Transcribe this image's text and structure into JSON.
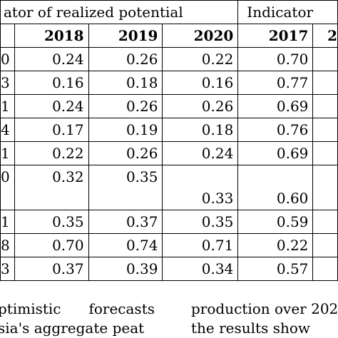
{
  "table": {
    "group_header_left": "ator of realized potential",
    "group_header_right": "Indicator",
    "years": [
      "2018",
      "2019",
      "2020",
      "2017",
      "2"
    ],
    "rows": [
      {
        "c0": "0",
        "v2018": "0.24",
        "v2019": "0.26",
        "v2020": "0.22",
        "v2017": "0.70"
      },
      {
        "c0": "3",
        "v2018": "0.16",
        "v2019": "0.18",
        "v2020": "0.16",
        "v2017": "0.77"
      },
      {
        "c0": "1",
        "v2018": "0.24",
        "v2019": "0.26",
        "v2020": "0.26",
        "v2017": "0.69"
      },
      {
        "c0": "4",
        "v2018": "0.17",
        "v2019": "0.19",
        "v2020": "0.18",
        "v2017": "0.76"
      },
      {
        "c0": "1",
        "v2018": "0.22",
        "v2019": "0.26",
        "v2020": "0.24",
        "v2017": "0.69"
      },
      {
        "c0": "0",
        "v2018": "0.32",
        "v2019": "0.35",
        "v2020": "0.33",
        "v2017": "0.60"
      },
      {
        "c0": "1",
        "v2018": "0.35",
        "v2019": "0.37",
        "v2020": "0.35",
        "v2017": "0.59"
      },
      {
        "c0": "8",
        "v2018": "0.70",
        "v2019": "0.74",
        "v2020": "0.71",
        "v2017": "0.22"
      },
      {
        "c0": "3",
        "v2018": "0.37",
        "v2019": "0.39",
        "v2020": "0.34",
        "v2017": "0.57"
      }
    ]
  },
  "text_left": {
    "line1_a": "ptimistic",
    "line1_b": "forecasts",
    "line2": "sia's aggregate peat"
  },
  "text_right": {
    "line1": "production over 202",
    "line2": "the results show"
  }
}
